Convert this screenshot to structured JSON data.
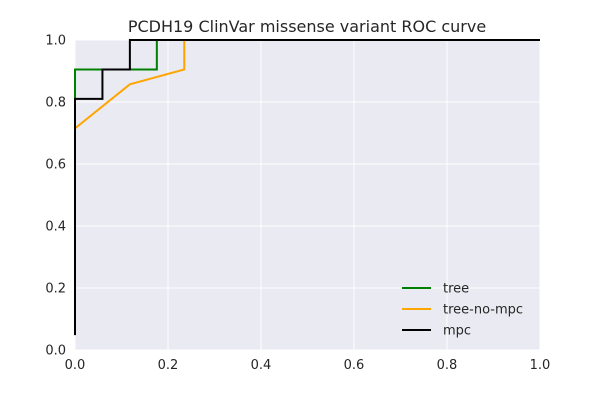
{
  "chart_data": {
    "type": "line",
    "title": "PCDH19 ClinVar missense variant ROC curve",
    "xlabel": "",
    "ylabel": "",
    "xlim": [
      0,
      1
    ],
    "ylim": [
      0,
      1
    ],
    "grid": true,
    "legend_position": "bottom-right",
    "x_ticks": [
      "0.0",
      "0.2",
      "0.4",
      "0.6",
      "0.8",
      "1.0"
    ],
    "y_ticks": [
      "0.0",
      "0.2",
      "0.4",
      "0.6",
      "0.8",
      "1.0"
    ],
    "colors": {
      "plot_background": "#eaeaf2",
      "grid": "#ffffff"
    },
    "series": [
      {
        "name": "tree",
        "color": "#008000",
        "points": [
          [
            0,
            0.81
          ],
          [
            0,
            0.905
          ],
          [
            0.176,
            0.905
          ],
          [
            0.176,
            1.0
          ],
          [
            1.0,
            1.0
          ]
        ]
      },
      {
        "name": "tree-no-mpc",
        "color": "#ffa500",
        "points": [
          [
            0,
            0.715
          ],
          [
            0.118,
            0.857
          ],
          [
            0.235,
            0.905
          ],
          [
            0.235,
            1.0
          ],
          [
            1.0,
            1.0
          ]
        ]
      },
      {
        "name": "mpc",
        "color": "#000000",
        "points": [
          [
            0,
            0.048
          ],
          [
            0,
            0.81
          ],
          [
            0.059,
            0.81
          ],
          [
            0.059,
            0.905
          ],
          [
            0.118,
            0.905
          ],
          [
            0.118,
            1.0
          ],
          [
            1.0,
            1.0
          ]
        ]
      }
    ]
  }
}
